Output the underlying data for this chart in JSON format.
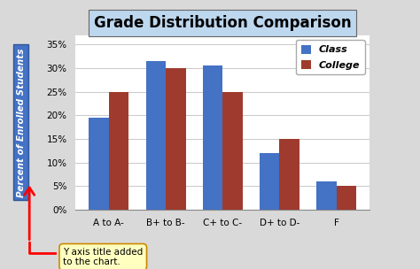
{
  "title": "Grade Distribution Comparison",
  "categories": [
    "A to A-",
    "B+ to B-",
    "C+ to C-",
    "D+ to D-",
    "F"
  ],
  "class_values": [
    19.5,
    31.5,
    30.5,
    12,
    6
  ],
  "college_values": [
    25,
    30,
    25,
    15,
    5
  ],
  "class_color": "#4472C4",
  "college_color": "#9E3B2E",
  "ylabel": "Percent of Enrolled Students",
  "ylim": [
    0,
    37
  ],
  "yticks": [
    0,
    5,
    10,
    15,
    20,
    25,
    30,
    35
  ],
  "ytick_labels": [
    "0%",
    "5%",
    "10%",
    "15%",
    "20%",
    "25%",
    "30%",
    "35%"
  ],
  "legend_class": "Class",
  "legend_college": "College",
  "background_color": "#D9D9D9",
  "plot_bg_color": "#FFFFFF",
  "annotation_text": "Y axis title added\nto the chart.",
  "title_fontsize": 12,
  "tick_fontsize": 7.5,
  "bar_width": 0.35
}
